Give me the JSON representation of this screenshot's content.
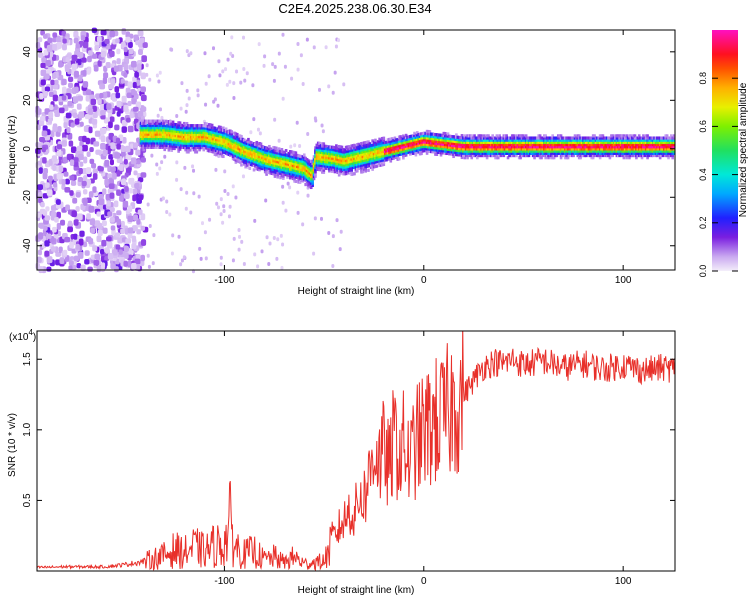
{
  "title": "C2E4.2025.238.06.30.E34",
  "chart_data": [
    {
      "type": "heatmap",
      "title": "C2E4.2025.238.06.30.E34",
      "xlabel": "Height of straight line (km)",
      "ylabel": "Frequency (Hz)",
      "xlim": [
        -194,
        126
      ],
      "ylim": [
        -50,
        49
      ],
      "x_ticks": [
        -100,
        0,
        100
      ],
      "y_ticks": [
        -40,
        -20,
        0,
        20,
        40
      ],
      "colorbar": {
        "label": "Normalized spectral amplitude",
        "range": [
          0,
          1
        ],
        "ticks": [
          0.0,
          0.2,
          0.4,
          0.6,
          0.8
        ]
      },
      "ridge_trace": {
        "x": [
          -140,
          -130,
          -120,
          -110,
          -100,
          -90,
          -80,
          -70,
          -60,
          -56,
          -54,
          -45,
          -40,
          -30,
          -20,
          -10,
          0,
          10,
          20,
          40,
          60,
          80,
          100,
          126
        ],
        "y": [
          6,
          6,
          5,
          5,
          3,
          -1,
          -4,
          -6,
          -8,
          -11,
          -3,
          -4,
          -5,
          -3,
          -1,
          1,
          3,
          2,
          1,
          1,
          1,
          1,
          1,
          1
        ]
      },
      "noise_region_x": [
        -194,
        -140
      ]
    },
    {
      "type": "line",
      "xlabel": "Height of straight line (km)",
      "ylabel": "SNR (10 * v/v)",
      "y_scale_label": "(x10",
      "y_scale_exp": "4",
      "xlim": [
        -194,
        126
      ],
      "ylim": [
        0,
        17000
      ],
      "x_ticks": [
        -100,
        0,
        100
      ],
      "y_ticks": [
        5000,
        10000,
        15000
      ],
      "y_tick_labels": [
        "0.5",
        "1.0",
        "1.5"
      ],
      "series": [
        {
          "name": "SNR",
          "color": "#e8302a",
          "x": [
            -194,
            -180,
            -160,
            -150,
            -140,
            -130,
            -125,
            -120,
            -115,
            -110,
            -105,
            -100,
            -97,
            -95,
            -90,
            -85,
            -80,
            -75,
            -70,
            -65,
            -60,
            -55,
            -50,
            -45,
            -42,
            -40,
            -37,
            -35,
            -32,
            -30,
            -27,
            -25,
            -22,
            -20,
            -17,
            -15,
            -12,
            -10,
            -7,
            -5,
            -2,
            0,
            5,
            10,
            15,
            20,
            25,
            30,
            35,
            40,
            45,
            50,
            60,
            70,
            80,
            90,
            100,
            110,
            120,
            126
          ],
          "y": [
            250,
            300,
            300,
            450,
            700,
            1100,
            1500,
            1300,
            1700,
            1400,
            1800,
            1900,
            3500,
            1800,
            1200,
            1400,
            800,
            1000,
            600,
            1000,
            500,
            600,
            700,
            2300,
            3200,
            3500,
            4500,
            3800,
            5500,
            5200,
            6800,
            9000,
            7800,
            8500,
            7200,
            9500,
            8300,
            9000,
            7500,
            8800,
            9500,
            9800,
            10500,
            10800,
            11800,
            12500,
            13500,
            14500,
            14800,
            14700,
            15000,
            14600,
            14900,
            14400,
            14700,
            14300,
            14600,
            14200,
            14400,
            14300
          ]
        }
      ]
    }
  ]
}
